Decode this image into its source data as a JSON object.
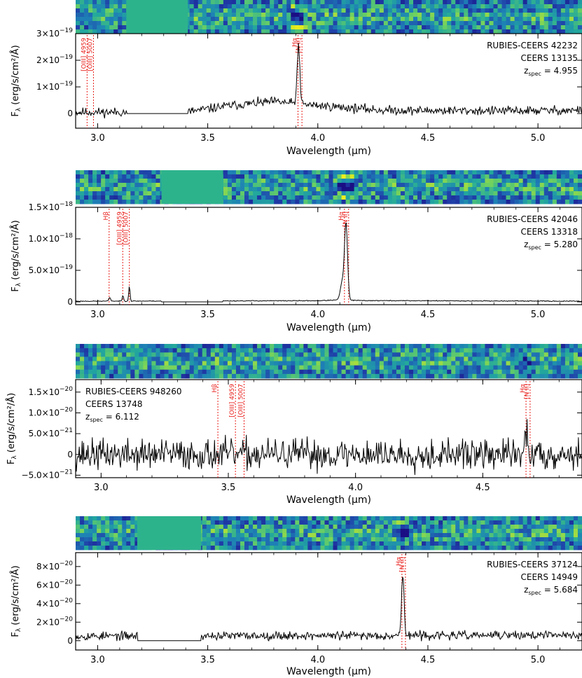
{
  "figure": {
    "xlabel": "Wavelength (μm)",
    "ylabel": "F",
    "ylabel_sub": "λ",
    "ylabel_units": "(erg/s/cm²/Å)"
  },
  "colors": {
    "spectrum": "#000000",
    "line_markers": "#e8201c",
    "gap_fill": "#2db38c",
    "panel_background": "#ffffff",
    "sci_2d_colormap": [
      "#1b0e84",
      "#1f3ea8",
      "#1e7fb6",
      "#23a99c",
      "#6bd062",
      "#d8e821",
      "#f7ef1e"
    ]
  },
  "chart_data": [
    {
      "type": "line",
      "title_lines": [
        "RUBIES-CEERS 42232",
        "CEERS 13135"
      ],
      "zspec_label": "z",
      "zspec_sub": "spec",
      "zspec_value": "= 4.955",
      "redshift": 4.955,
      "label_position": "top-right",
      "xlim": [
        2.9,
        5.2
      ],
      "ylim": [
        -5.5e-20,
        3e-19
      ],
      "xticks": [
        3.0,
        3.5,
        4.0,
        4.5,
        5.0
      ],
      "xtick_labels": [
        "3.0",
        "3.5",
        "4.0",
        "4.5",
        "5.0"
      ],
      "yticks": [
        0,
        1e-19,
        2e-19,
        3e-19
      ],
      "ytick_mant": [
        "0",
        "1×10",
        "2×10",
        "3×10"
      ],
      "ytick_exp": [
        "",
        "−19",
        "−19",
        "−19"
      ],
      "xlabel": "Wavelength (μm)",
      "gap": [
        3.13,
        3.41
      ],
      "emission_lines": [
        {
          "label": "[OIII] 4959",
          "x": 2.952
        },
        {
          "label": "[OIII] 5007",
          "x": 2.981
        },
        {
          "label": "Hα",
          "x": 3.91
        },
        {
          "label": "[N II]",
          "x": 3.928
        }
      ],
      "features": [
        {
          "center": 3.912,
          "amp": 2.2e-19,
          "sigma": 0.006
        }
      ],
      "continuum": [
        [
          2.9,
          5e-21
        ],
        [
          3.4,
          5e-21
        ],
        [
          3.6,
          3e-20
        ],
        [
          3.8,
          4.5e-20
        ],
        [
          4.0,
          3e-20
        ],
        [
          4.3,
          1.2e-20
        ],
        [
          4.8,
          1e-20
        ],
        [
          5.2,
          1.2e-20
        ]
      ],
      "noise": 1.3e-20,
      "seed": 11
    },
    {
      "type": "line",
      "title_lines": [
        "RUBIES-CEERS 42046",
        "CEERS 13318"
      ],
      "zspec_label": "z",
      "zspec_sub": "spec",
      "zspec_value": "= 5.280",
      "redshift": 5.28,
      "label_position": "top-right",
      "xlim": [
        2.9,
        5.2
      ],
      "ylim": [
        -4.5e-20,
        1.5e-18
      ],
      "xticks": [
        3.0,
        3.5,
        4.0,
        4.5,
        5.0
      ],
      "xtick_labels": [
        "3.0",
        "3.5",
        "4.0",
        "4.5",
        "5.0"
      ],
      "yticks": [
        0,
        5e-19,
        1e-18,
        1.5e-18
      ],
      "ytick_mant": [
        "0",
        "5.0×10",
        "1.0×10",
        "1.5×10"
      ],
      "ytick_exp": [
        "",
        "−19",
        "−18",
        "−18"
      ],
      "xlabel": "Wavelength (μm)",
      "gap": [
        3.29,
        3.57
      ],
      "emission_lines": [
        {
          "label": "Hβ",
          "x": 3.052
        },
        {
          "label": "[OIII] 4959",
          "x": 3.114
        },
        {
          "label": "[OIII] 5007",
          "x": 3.144
        },
        {
          "label": "Hα",
          "x": 4.121
        },
        {
          "label": "[N II]",
          "x": 4.14
        }
      ],
      "features": [
        {
          "center": 3.055,
          "amp": 6e-20,
          "sigma": 0.004
        },
        {
          "center": 3.115,
          "amp": 9e-20,
          "sigma": 0.003
        },
        {
          "center": 3.144,
          "amp": 2.4e-19,
          "sigma": 0.003
        },
        {
          "center": 4.128,
          "amp": 1.22e-18,
          "sigma": 0.007
        },
        {
          "center": 4.11,
          "amp": 2.7e-19,
          "sigma": 0.008
        }
      ],
      "continuum": [
        [
          2.9,
          1e-20
        ],
        [
          4.0,
          1.8e-20
        ],
        [
          4.1,
          3e-20
        ],
        [
          4.2,
          2e-20
        ],
        [
          5.2,
          1e-20
        ]
      ],
      "noise": 5e-21,
      "seed": 23
    },
    {
      "type": "line",
      "title_lines": [
        "RUBIES-CEERS 948260",
        "CEERS 13748"
      ],
      "zspec_label": "z",
      "zspec_sub": "spec",
      "zspec_value": "= 6.112",
      "redshift": 6.112,
      "label_position": "top-left",
      "xlim": [
        2.9,
        4.89
      ],
      "ylim": [
        -5.6e-21,
        1.8e-20
      ],
      "xticks": [
        3.0,
        3.5,
        4.0,
        4.5
      ],
      "xtick_labels": [
        "3.0",
        "3.5",
        "4.0",
        "4.5"
      ],
      "yticks": [
        -5e-21,
        0,
        5e-21,
        1e-20,
        1.5e-20
      ],
      "ytick_mant": [
        "−5.0×10",
        "0",
        "5.0×10",
        "1.0×10",
        "1.5×10"
      ],
      "ytick_exp": [
        "−21",
        "",
        "−21",
        "−20",
        "−20"
      ],
      "xlabel": "Wavelength (μm)",
      "gap": null,
      "emission_lines": [
        {
          "label": "Hβ",
          "x": 3.459
        },
        {
          "label": "[OIII] 4959",
          "x": 3.528
        },
        {
          "label": "[OIII] 5007",
          "x": 3.562
        },
        {
          "label": "Hα",
          "x": 4.67
        },
        {
          "label": "[N II]",
          "x": 4.686
        }
      ],
      "features": [
        {
          "center": 4.672,
          "amp": 5.5e-21,
          "sigma": 0.005
        }
      ],
      "continuum": [
        [
          2.9,
          0
        ],
        [
          4.89,
          0
        ]
      ],
      "noise": 2.8e-21,
      "seed": 37
    },
    {
      "type": "line",
      "title_lines": [
        "RUBIES-CEERS 37124",
        "CEERS 14949"
      ],
      "zspec_label": "z",
      "zspec_sub": "spec",
      "zspec_value": "= 5.684",
      "redshift": 5.684,
      "label_position": "top-right",
      "xlim": [
        2.9,
        5.2
      ],
      "ylim": [
        -1e-20,
        9.5e-20
      ],
      "xticks": [
        3.0,
        3.5,
        4.0,
        4.5,
        5.0
      ],
      "xtick_labels": [
        "3.0",
        "3.5",
        "4.0",
        "4.5",
        "5.0"
      ],
      "yticks": [
        0,
        2e-20,
        4e-20,
        6e-20,
        8e-20
      ],
      "ytick_mant": [
        "0",
        "2×10",
        "4×10",
        "6×10",
        "8×10"
      ],
      "ytick_exp": [
        "",
        "−20",
        "−20",
        "−20",
        "−20"
      ],
      "xlabel": "Wavelength (μm)",
      "gap": [
        3.18,
        3.47
      ],
      "emission_lines": [
        {
          "label": "Hα",
          "x": 4.382
        },
        {
          "label": "[N II]",
          "x": 4.398
        }
      ],
      "features": [
        {
          "center": 4.386,
          "amp": 6.4e-20,
          "sigma": 0.006
        }
      ],
      "continuum": [
        [
          2.9,
          5e-21
        ],
        [
          5.2,
          6e-21
        ]
      ],
      "noise": 3.5e-21,
      "seed": 53
    }
  ]
}
